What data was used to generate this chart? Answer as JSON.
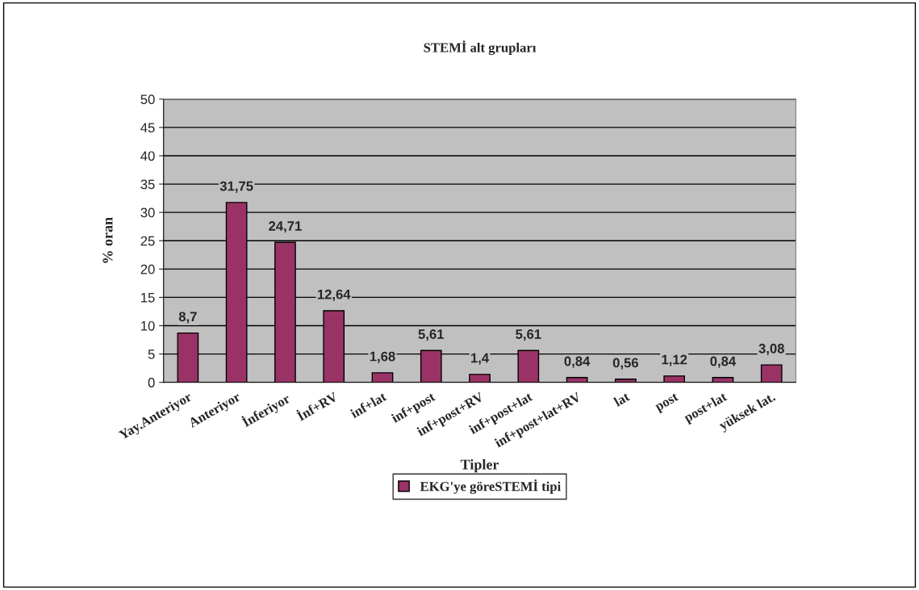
{
  "chart_data": {
    "type": "bar",
    "title": "STEMİ alt grupları",
    "xlabel": "Tipler",
    "ylabel": "% oran",
    "categories": [
      "Yay.Anteriyor",
      "Anteriyor",
      "İnferiyor",
      "İnf+RV",
      "inf+lat",
      "inf+post",
      "inf+post+RV",
      "inf+post+lat",
      "inf+post+lat+RV",
      "lat",
      "post",
      "post+lat",
      "yüksek lat."
    ],
    "series": [
      {
        "name": "EKG'ye göreSTEMİ tipi",
        "color": "#993366",
        "values": [
          8.7,
          31.75,
          24.71,
          12.64,
          1.68,
          5.61,
          1.4,
          5.61,
          0.84,
          0.56,
          1.12,
          0.84,
          3.08
        ]
      }
    ],
    "value_labels": [
      "8,7",
      "31,75",
      "24,71",
      "12,64",
      "1,68",
      "5,61",
      "1,4",
      "5,61",
      "0,84",
      "0,56",
      "1,12",
      "0,84",
      "3,08"
    ],
    "ylim": [
      0,
      50
    ],
    "yticks": [
      0,
      5,
      10,
      15,
      20,
      25,
      30,
      35,
      40,
      45,
      50
    ],
    "grid": "y",
    "legend": "bottom"
  }
}
